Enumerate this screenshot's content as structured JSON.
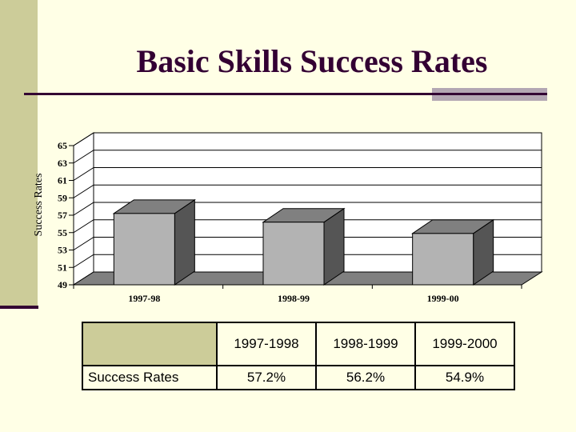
{
  "slide": {
    "title": "Basic Skills Success Rates"
  },
  "chart_data": {
    "type": "bar",
    "style": "3d",
    "ylabel": "Success Rates",
    "xlabel": "",
    "categories": [
      "1997-98",
      "1998-99",
      "1999-00"
    ],
    "values": [
      57.2,
      56.2,
      54.9
    ],
    "ylim": [
      49,
      65
    ],
    "yticks": [
      "49",
      "51",
      "53",
      "55",
      "57",
      "59",
      "61",
      "63",
      "65"
    ],
    "grid": true,
    "legend": "none"
  },
  "table": {
    "headers": [
      "1997-1998",
      "1998-1999",
      "1999-2000"
    ],
    "row_label": "Success Rates",
    "values": [
      "57.2%",
      "56.2%",
      "54.9%"
    ]
  },
  "colors": {
    "background": "#ffffe6",
    "accent_band": "#cccc99",
    "title": "#330033",
    "bar_front": "#b3b3b3",
    "bar_side": "#555555",
    "bar_top": "#808080",
    "floor": "#808080"
  }
}
